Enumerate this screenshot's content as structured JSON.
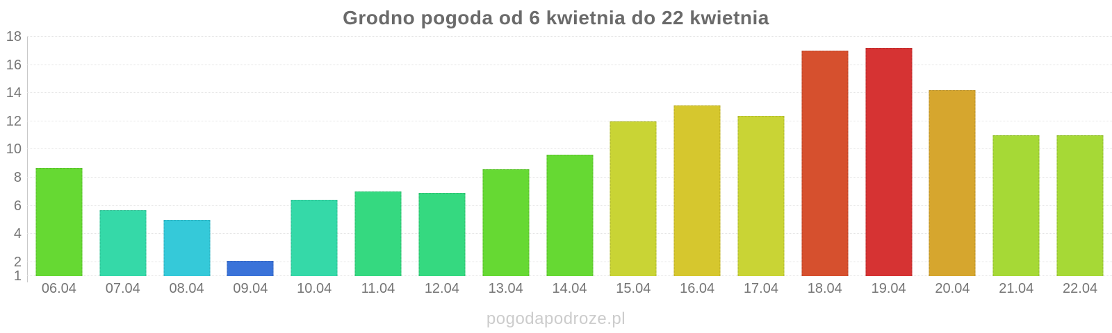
{
  "watermark": {
    "text": "pogodapodroze.pl"
  },
  "chart_data": {
    "type": "bar",
    "title": "Grodno pogoda od 6 kwietnia do 22 kwietnia",
    "xlabel": "",
    "ylabel": "",
    "categories": [
      "06.04",
      "07.04",
      "08.04",
      "09.04",
      "10.04",
      "11.04",
      "12.04",
      "13.04",
      "14.04",
      "15.04",
      "16.04",
      "17.04",
      "18.04",
      "19.04",
      "20.04",
      "21.04",
      "22.04"
    ],
    "values": [
      8.7,
      5.7,
      5.0,
      2.1,
      6.4,
      7.0,
      6.9,
      8.6,
      9.6,
      12.0,
      13.1,
      12.4,
      17.0,
      17.2,
      14.2,
      11.0,
      11.0
    ],
    "bar_colors": [
      "#66D933",
      "#35D9A8",
      "#35C9D9",
      "#3A73D9",
      "#35D9A8",
      "#35D980",
      "#35D980",
      "#66D933",
      "#66D933",
      "#C9D435",
      "#D6C72E",
      "#C9D435",
      "#D6502E",
      "#D63333",
      "#D6A62E",
      "#A6D936",
      "#A6D936"
    ],
    "ylim": [
      1,
      18
    ],
    "yticks": [
      1,
      2,
      4,
      6,
      8,
      10,
      12,
      14,
      16,
      18
    ],
    "grid": "horizontal dotted",
    "legend": "none",
    "style": {
      "title_color": "#6a6a6a",
      "axis_label_color": "#757575",
      "gridline_color": "#e4e4e4",
      "axis_line_color": "#c8c8c8",
      "watermark_color": "#cccccc",
      "background": "#ffffff"
    }
  }
}
